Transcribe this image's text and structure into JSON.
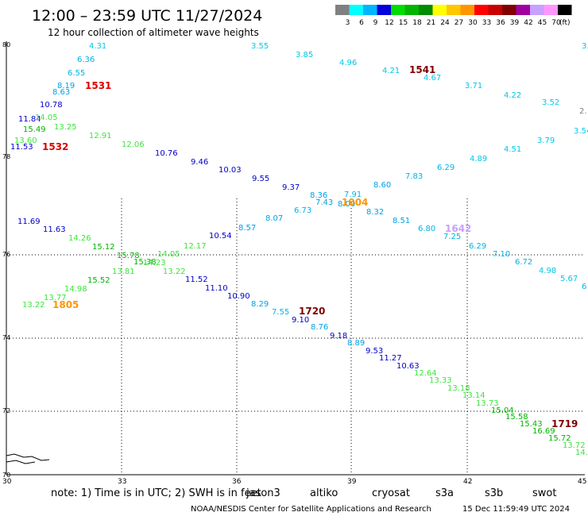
{
  "header": {
    "title": "12:00 – 23:59 UTC 11/27/2024",
    "subtitle": "12 hour collection of altimeter wave heights"
  },
  "scale": {
    "unit": "(ft)",
    "items": [
      {
        "label": "3",
        "color": "#808080"
      },
      {
        "label": "6",
        "color": "#00ffff"
      },
      {
        "label": "9",
        "color": "#00b4ff"
      },
      {
        "label": "12",
        "color": "#0000dc"
      },
      {
        "label": "15",
        "color": "#00dc00"
      },
      {
        "label": "18",
        "color": "#00b400"
      },
      {
        "label": "21",
        "color": "#008c00"
      },
      {
        "label": "24",
        "color": "#ffff00"
      },
      {
        "label": "27",
        "color": "#ffc800"
      },
      {
        "label": "30",
        "color": "#ff9600"
      },
      {
        "label": "33",
        "color": "#ff0000"
      },
      {
        "label": "36",
        "color": "#c80000"
      },
      {
        "label": "39",
        "color": "#800000"
      },
      {
        "label": "42",
        "color": "#a000a0"
      },
      {
        "label": "45",
        "color": "#c8a0ff"
      },
      {
        "label": "70",
        "color": "#ff96ff"
      },
      {
        "label": "",
        "color": "#000000"
      }
    ]
  },
  "axes": {
    "lat_labels": [
      "80",
      "78",
      "76",
      "74",
      "72",
      "70"
    ],
    "lon_labels": [
      "30",
      "33",
      "36",
      "39",
      "42",
      "45"
    ]
  },
  "observations": [
    {
      "text": "4.31",
      "color": "#00c8e6"
    },
    {
      "text": "6.36",
      "color": "#00b4e6"
    },
    {
      "text": "6.55",
      "color": "#00b4e6"
    },
    {
      "text": "8.19",
      "color": "#00a0e6"
    },
    {
      "text": "8.63",
      "color": "#00a0e6"
    },
    {
      "text": "10.78",
      "color": "#0000c8"
    },
    {
      "text": "11.84",
      "color": "#0000c8"
    },
    {
      "text": "14.05",
      "color": "#3ce63c"
    },
    {
      "text": "15.49",
      "color": "#00b400"
    },
    {
      "text": "13.25",
      "color": "#3ce63c"
    },
    {
      "text": "13.60",
      "color": "#3ce63c"
    },
    {
      "text": "11.53",
      "color": "#0000c8"
    },
    {
      "text": "12.91",
      "color": "#3ce63c"
    },
    {
      "text": "12.06",
      "color": "#3ce63c"
    },
    {
      "text": "10.76",
      "color": "#0000c8"
    },
    {
      "text": "9.46",
      "color": "#0000c8"
    },
    {
      "text": "10.03",
      "color": "#0000c8"
    },
    {
      "text": "9.55",
      "color": "#0000c8"
    },
    {
      "text": "9.37",
      "color": "#0000c8"
    },
    {
      "text": "8.36",
      "color": "#00a0e6"
    },
    {
      "text": "7.43",
      "color": "#00a0e6"
    },
    {
      "text": "8.00",
      "color": "#00a0e6"
    },
    {
      "text": "7.91",
      "color": "#00b4e6"
    },
    {
      "text": "8.32",
      "color": "#00a0e6"
    },
    {
      "text": "8.60",
      "color": "#00a0e6"
    },
    {
      "text": "7.83",
      "color": "#00b4e6"
    },
    {
      "text": "6.29",
      "color": "#00b4e6"
    },
    {
      "text": "4.89",
      "color": "#00c8e6"
    },
    {
      "text": "4.51",
      "color": "#00c8e6"
    },
    {
      "text": "3.79",
      "color": "#00c8e6"
    },
    {
      "text": "3.54",
      "color": "#00c8e6"
    },
    {
      "text": "6.73",
      "color": "#00b4e6"
    },
    {
      "text": "8.07",
      "color": "#00a0e6"
    },
    {
      "text": "8.57",
      "color": "#00a0e6"
    },
    {
      "text": "10.54",
      "color": "#0000c8"
    },
    {
      "text": "12.17",
      "color": "#3ce63c"
    },
    {
      "text": "14.05",
      "color": "#3ce63c"
    },
    {
      "text": "15.78",
      "color": "#00b400"
    },
    {
      "text": "15.12",
      "color": "#00b400"
    },
    {
      "text": "14.26",
      "color": "#3ce63c"
    },
    {
      "text": "11.63",
      "color": "#0000c8"
    },
    {
      "text": "11.69",
      "color": "#0000c8"
    },
    {
      "text": "15.38",
      "color": "#00b400"
    },
    {
      "text": "14.23",
      "color": "#3ce63c"
    },
    {
      "text": "13.81",
      "color": "#3ce63c"
    },
    {
      "text": "13.22",
      "color": "#3ce63c"
    },
    {
      "text": "15.52",
      "color": "#00b400"
    },
    {
      "text": "14.98",
      "color": "#3ce63c"
    },
    {
      "text": "13.77",
      "color": "#3ce63c"
    },
    {
      "text": "13.22",
      "color": "#3ce63c"
    },
    {
      "text": "11.52",
      "color": "#0000c8"
    },
    {
      "text": "11.10",
      "color": "#0000c8"
    },
    {
      "text": "10.90",
      "color": "#0000c8"
    },
    {
      "text": "8.29",
      "color": "#00a0e6"
    },
    {
      "text": "7.55",
      "color": "#00b4e6"
    },
    {
      "text": "9.10",
      "color": "#0000c8"
    },
    {
      "text": "8.76",
      "color": "#00a0e6"
    },
    {
      "text": "9.18",
      "color": "#0000c8"
    },
    {
      "text": "8.89",
      "color": "#00a0e6"
    },
    {
      "text": "9.53",
      "color": "#0000c8"
    },
    {
      "text": "11.27",
      "color": "#0000c8"
    },
    {
      "text": "10.63",
      "color": "#0000c8"
    },
    {
      "text": "12.64",
      "color": "#3ce63c"
    },
    {
      "text": "13.33",
      "color": "#3ce63c"
    },
    {
      "text": "13.18",
      "color": "#3ce63c"
    },
    {
      "text": "13.14",
      "color": "#3ce63c"
    },
    {
      "text": "13.73",
      "color": "#3ce63c"
    },
    {
      "text": "15.04",
      "color": "#00b400"
    },
    {
      "text": "15.58",
      "color": "#00b400"
    },
    {
      "text": "15.43",
      "color": "#00b400"
    },
    {
      "text": "16.69",
      "color": "#00b400"
    },
    {
      "text": "15.72",
      "color": "#00b400"
    },
    {
      "text": "13.72",
      "color": "#3ce63c"
    },
    {
      "text": "14.",
      "color": "#3ce63c"
    },
    {
      "text": "3.55",
      "color": "#00c8e6"
    },
    {
      "text": "3.85",
      "color": "#00c8e6"
    },
    {
      "text": "4.96",
      "color": "#00c8e6"
    },
    {
      "text": "4.21",
      "color": "#00c8e6"
    },
    {
      "text": "4.67",
      "color": "#00c8e6"
    },
    {
      "text": "3.71",
      "color": "#00c8e6"
    },
    {
      "text": "4.22",
      "color": "#00c8e6"
    },
    {
      "text": "3.52",
      "color": "#00c8e6"
    },
    {
      "text": "2.",
      "color": "#808080"
    },
    {
      "text": "3.",
      "color": "#00c8e6"
    },
    {
      "text": "8.51",
      "color": "#00a0e6"
    },
    {
      "text": "6.80",
      "color": "#00b4e6"
    },
    {
      "text": "7.25",
      "color": "#00b4e6"
    },
    {
      "text": "6.29",
      "color": "#00b4e6"
    },
    {
      "text": "7.10",
      "color": "#00b4e6"
    },
    {
      "text": "6.72",
      "color": "#00b4e6"
    },
    {
      "text": "4.98",
      "color": "#00c8e6"
    },
    {
      "text": "5.67",
      "color": "#00c8e6"
    },
    {
      "text": "6",
      "color": "#00b4e6"
    }
  ],
  "time_labels": [
    {
      "text": "1531",
      "color": "#dc0000"
    },
    {
      "text": "1532",
      "color": "#dc0000"
    },
    {
      "text": "1541",
      "color": "#800000"
    },
    {
      "text": "1004",
      "color": "#ff9600"
    },
    {
      "text": "1642",
      "color": "#c8a0ff"
    },
    {
      "text": "1805",
      "color": "#ff9600"
    },
    {
      "text": "1720",
      "color": "#800000"
    },
    {
      "text": "1719",
      "color": "#800000"
    }
  ],
  "note": {
    "prefix": "note:  1) Time is in UTC; 2) SWH is in feet",
    "satellites": [
      {
        "name": "jason3",
        "color": "#008c00"
      },
      {
        "name": "altiko",
        "color": "#ff9600"
      },
      {
        "name": "cryosat",
        "color": "#ff0000"
      },
      {
        "name": "s3a",
        "color": "#800000"
      },
      {
        "name": "s3b",
        "color": "#c8a0ff"
      },
      {
        "name": "swot",
        "color": "#ff96ff"
      }
    ]
  },
  "credit": {
    "agency": "NOAA/NESDIS Center for Satellite Applications and Research",
    "timestamp": "15 Dec 11:59:49 UTC 2024"
  }
}
